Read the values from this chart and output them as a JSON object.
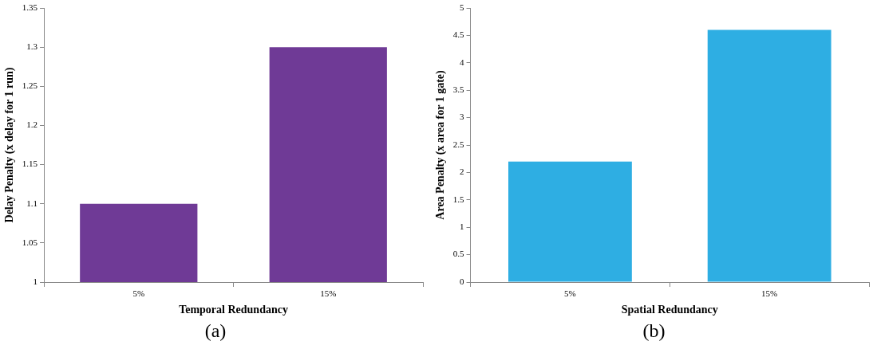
{
  "chart_data": [
    {
      "type": "bar",
      "xlabel": "Temporal Redundancy",
      "ylabel": "Delay Penalty (x delay for 1 run)",
      "categories": [
        "5%",
        "15%"
      ],
      "values": [
        1.1,
        1.3
      ],
      "color": "#6f3a96",
      "ylim": [
        1,
        1.35
      ],
      "yticks": [
        1,
        1.05,
        1.1,
        1.15,
        1.2,
        1.25,
        1.3,
        1.35
      ],
      "grid": false,
      "annotations": [
        "(a)"
      ]
    },
    {
      "type": "bar",
      "xlabel": "Spatial Redundancy",
      "ylabel": "Area Penalty (x area for 1 gate)",
      "categories": [
        "5%",
        "15%"
      ],
      "values": [
        2.2,
        4.6
      ],
      "color": "#2eaee3",
      "ylim": [
        0,
        5
      ],
      "yticks": [
        0,
        0.5,
        1,
        1.5,
        2,
        2.5,
        3,
        3.5,
        4,
        4.5,
        5
      ],
      "grid": false,
      "annotations": [
        "(b)"
      ]
    }
  ]
}
